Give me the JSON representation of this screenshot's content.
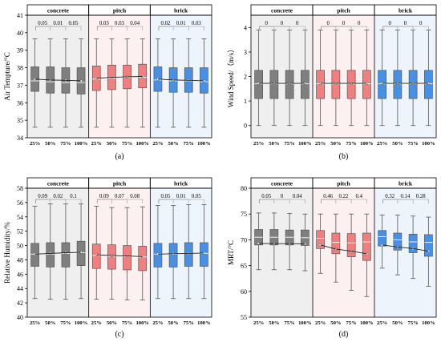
{
  "chart_data": [
    {
      "type": "box",
      "panel_label": "(a)",
      "ylabel": "Air Tempture/°C",
      "ylim": [
        34,
        41
      ],
      "yticks": [
        34,
        35,
        36,
        37,
        38,
        39,
        40,
        41
      ],
      "tick_labels": [
        "25%",
        "50%",
        "75%",
        "100%"
      ],
      "groups": [
        {
          "name": "concrete",
          "color": "#7f7f7f",
          "bg": "#efefef",
          "p_values": [
            "0.05",
            "0.01",
            "0.05"
          ],
          "boxes": [
            {
              "whisker_low": 34.6,
              "q1": 36.65,
              "median": 37.25,
              "mean": 37.35,
              "q3": 38.05,
              "whisker_high": 39.65
            },
            {
              "whisker_low": 34.6,
              "q1": 36.55,
              "median": 37.2,
              "mean": 37.3,
              "q3": 38.05,
              "whisker_high": 39.65
            },
            {
              "whisker_low": 34.6,
              "q1": 36.55,
              "median": 37.15,
              "mean": 37.28,
              "q3": 38.0,
              "whisker_high": 39.65
            },
            {
              "whisker_low": 34.6,
              "q1": 36.5,
              "median": 37.15,
              "mean": 37.25,
              "q3": 38.0,
              "whisker_high": 39.65
            }
          ]
        },
        {
          "name": "pitch",
          "color": "#f08080",
          "bg": "#fdf0f0",
          "p_values": [
            "0.03",
            "0.03",
            "0.04"
          ],
          "boxes": [
            {
              "whisker_low": 34.6,
              "q1": 36.7,
              "median": 37.35,
              "mean": 37.4,
              "q3": 38.1,
              "whisker_high": 39.65
            },
            {
              "whisker_low": 34.6,
              "q1": 36.75,
              "median": 37.4,
              "mean": 37.45,
              "q3": 38.15,
              "whisker_high": 39.65
            },
            {
              "whisker_low": 34.6,
              "q1": 36.8,
              "median": 37.45,
              "mean": 37.48,
              "q3": 38.15,
              "whisker_high": 39.65
            },
            {
              "whisker_low": 34.6,
              "q1": 36.85,
              "median": 37.45,
              "mean": 37.5,
              "q3": 38.2,
              "whisker_high": 39.65
            }
          ]
        },
        {
          "name": "brick",
          "color": "#4a90e2",
          "bg": "#eef4fb",
          "p_values": [
            "0.02",
            "0.01",
            "0.03"
          ],
          "boxes": [
            {
              "whisker_low": 34.6,
              "q1": 36.65,
              "median": 37.3,
              "mean": 37.35,
              "q3": 38.05,
              "whisker_high": 39.65
            },
            {
              "whisker_low": 34.6,
              "q1": 36.6,
              "median": 37.25,
              "mean": 37.3,
              "q3": 38.0,
              "whisker_high": 39.65
            },
            {
              "whisker_low": 34.6,
              "q1": 36.6,
              "median": 37.25,
              "mean": 37.28,
              "q3": 38.0,
              "whisker_high": 39.65
            },
            {
              "whisker_low": 34.6,
              "q1": 36.55,
              "median": 37.2,
              "mean": 37.25,
              "q3": 38.0,
              "whisker_high": 39.65
            }
          ]
        }
      ]
    },
    {
      "type": "box",
      "panel_label": "(b)",
      "ylabel": "Wind Speed/（m/s）",
      "ylim": [
        -0.5,
        4.5
      ],
      "yticks": [
        0,
        1,
        2,
        3,
        4
      ],
      "tick_labels": [
        "25%",
        "50%",
        "75%",
        "100%"
      ],
      "groups": [
        {
          "name": "concrete",
          "color": "#7f7f7f",
          "bg": "#efefef",
          "p_values": [
            "0",
            "0",
            "0"
          ],
          "boxes": [
            {
              "whisker_low": 0.0,
              "q1": 1.1,
              "median": 1.7,
              "mean": 1.72,
              "q3": 2.25,
              "whisker_high": 3.9
            },
            {
              "whisker_low": 0.0,
              "q1": 1.1,
              "median": 1.7,
              "mean": 1.72,
              "q3": 2.25,
              "whisker_high": 3.9
            },
            {
              "whisker_low": 0.0,
              "q1": 1.1,
              "median": 1.7,
              "mean": 1.72,
              "q3": 2.25,
              "whisker_high": 3.9
            },
            {
              "whisker_low": 0.0,
              "q1": 1.1,
              "median": 1.7,
              "mean": 1.72,
              "q3": 2.25,
              "whisker_high": 3.9
            }
          ]
        },
        {
          "name": "pitch",
          "color": "#f08080",
          "bg": "#fdf0f0",
          "p_values": [
            "0",
            "0",
            "0"
          ],
          "boxes": [
            {
              "whisker_low": 0.0,
              "q1": 1.1,
              "median": 1.7,
              "mean": 1.72,
              "q3": 2.25,
              "whisker_high": 3.9
            },
            {
              "whisker_low": 0.0,
              "q1": 1.1,
              "median": 1.7,
              "mean": 1.72,
              "q3": 2.25,
              "whisker_high": 3.9
            },
            {
              "whisker_low": 0.0,
              "q1": 1.1,
              "median": 1.7,
              "mean": 1.72,
              "q3": 2.25,
              "whisker_high": 3.9
            },
            {
              "whisker_low": 0.0,
              "q1": 1.1,
              "median": 1.7,
              "mean": 1.72,
              "q3": 2.25,
              "whisker_high": 3.9
            }
          ]
        },
        {
          "name": "brick",
          "color": "#4a90e2",
          "bg": "#eef4fb",
          "p_values": [
            "0",
            "0",
            "0"
          ],
          "boxes": [
            {
              "whisker_low": 0.0,
              "q1": 1.1,
              "median": 1.7,
              "mean": 1.72,
              "q3": 2.25,
              "whisker_high": 3.9
            },
            {
              "whisker_low": 0.0,
              "q1": 1.1,
              "median": 1.7,
              "mean": 1.72,
              "q3": 2.25,
              "whisker_high": 3.9
            },
            {
              "whisker_low": 0.0,
              "q1": 1.1,
              "median": 1.7,
              "mean": 1.72,
              "q3": 2.25,
              "whisker_high": 3.9
            },
            {
              "whisker_low": 0.0,
              "q1": 1.1,
              "median": 1.7,
              "mean": 1.72,
              "q3": 2.25,
              "whisker_high": 3.9
            }
          ]
        }
      ]
    },
    {
      "type": "box",
      "panel_label": "(c)",
      "ylabel": "Relative Humidity/%",
      "ylim": [
        40,
        58
      ],
      "yticks": [
        40,
        42,
        44,
        46,
        48,
        50,
        52,
        54,
        56,
        58
      ],
      "tick_labels": [
        "25%",
        "50%",
        "75%",
        "100%"
      ],
      "groups": [
        {
          "name": "concrete",
          "color": "#7f7f7f",
          "bg": "#efefef",
          "p_values": [
            "0.09",
            "0.02",
            "0.1"
          ],
          "boxes": [
            {
              "whisker_low": 42.6,
              "q1": 47.1,
              "median": 48.8,
              "mean": 48.8,
              "q3": 50.3,
              "whisker_high": 55.5
            },
            {
              "whisker_low": 42.5,
              "q1": 47.0,
              "median": 48.8,
              "mean": 48.9,
              "q3": 50.4,
              "whisker_high": 55.8
            },
            {
              "whisker_low": 42.5,
              "q1": 47.0,
              "median": 48.9,
              "mean": 49.0,
              "q3": 50.4,
              "whisker_high": 55.8
            },
            {
              "whisker_low": 42.6,
              "q1": 47.2,
              "median": 49.0,
              "mean": 49.05,
              "q3": 50.6,
              "whisker_high": 55.8
            }
          ]
        },
        {
          "name": "pitch",
          "color": "#f08080",
          "bg": "#fdf0f0",
          "p_values": [
            "0.09",
            "0.07",
            "0.08"
          ],
          "boxes": [
            {
              "whisker_low": 42.5,
              "q1": 46.8,
              "median": 48.6,
              "mean": 48.7,
              "q3": 50.2,
              "whisker_high": 55.5
            },
            {
              "whisker_low": 42.5,
              "q1": 46.7,
              "median": 48.5,
              "mean": 48.6,
              "q3": 50.1,
              "whisker_high": 55.3
            },
            {
              "whisker_low": 42.4,
              "q1": 46.6,
              "median": 48.5,
              "mean": 48.55,
              "q3": 50.0,
              "whisker_high": 55.3
            },
            {
              "whisker_low": 42.4,
              "q1": 46.5,
              "median": 48.4,
              "mean": 48.45,
              "q3": 49.9,
              "whisker_high": 55.4
            }
          ]
        },
        {
          "name": "brick",
          "color": "#4a90e2",
          "bg": "#eef4fb",
          "p_values": [
            "0.05",
            "0.01",
            "0.05"
          ],
          "boxes": [
            {
              "whisker_low": 42.6,
              "q1": 47.0,
              "median": 48.8,
              "mean": 48.8,
              "q3": 50.3,
              "whisker_high": 55.6
            },
            {
              "whisker_low": 42.6,
              "q1": 47.0,
              "median": 48.8,
              "mean": 48.85,
              "q3": 50.3,
              "whisker_high": 55.6
            },
            {
              "whisker_low": 42.6,
              "q1": 47.1,
              "median": 48.9,
              "mean": 48.9,
              "q3": 50.4,
              "whisker_high": 55.7
            },
            {
              "whisker_low": 42.6,
              "q1": 47.1,
              "median": 48.9,
              "mean": 48.95,
              "q3": 50.4,
              "whisker_high": 55.7
            }
          ]
        }
      ]
    },
    {
      "type": "box",
      "panel_label": "(d)",
      "ylabel": "MRT/°C",
      "ylim": [
        55,
        80
      ],
      "yticks": [
        55,
        60,
        65,
        70,
        75,
        80
      ],
      "tick_labels": [
        "25%",
        "50%",
        "75%",
        "100%"
      ],
      "groups": [
        {
          "name": "concrete",
          "color": "#7f7f7f",
          "bg": "#efefef",
          "p_values": [
            "0.05",
            "0",
            "0.04"
          ],
          "boxes": [
            {
              "whisker_low": 64.2,
              "q1": 69.0,
              "median": 70.5,
              "mean": 69.3,
              "q3": 72.0,
              "whisker_high": 75.2
            },
            {
              "whisker_low": 64.2,
              "q1": 69.0,
              "median": 70.5,
              "mean": 69.25,
              "q3": 72.0,
              "whisker_high": 75.2
            },
            {
              "whisker_low": 64.2,
              "q1": 69.0,
              "median": 70.5,
              "mean": 69.25,
              "q3": 71.9,
              "whisker_high": 75.1
            },
            {
              "whisker_low": 64.0,
              "q1": 68.9,
              "median": 70.4,
              "mean": 69.2,
              "q3": 71.9,
              "whisker_high": 75.0
            }
          ]
        },
        {
          "name": "pitch",
          "color": "#f08080",
          "bg": "#fdf0f0",
          "p_values": [
            "0.46",
            "0.22",
            "0.4"
          ],
          "boxes": [
            {
              "whisker_low": 63.5,
              "q1": 68.3,
              "median": 70.3,
              "mean": 69.0,
              "q3": 71.8,
              "whisker_high": 75.0
            },
            {
              "whisker_low": 61.8,
              "q1": 67.3,
              "median": 69.5,
              "mean": 68.2,
              "q3": 71.3,
              "whisker_high": 75.0
            },
            {
              "whisker_low": 60.2,
              "q1": 66.7,
              "median": 69.4,
              "mean": 67.8,
              "q3": 71.2,
              "whisker_high": 75.0
            },
            {
              "whisker_low": 59.0,
              "q1": 66.0,
              "median": 69.6,
              "mean": 67.3,
              "q3": 71.3,
              "whisker_high": 75.0
            }
          ]
        },
        {
          "name": "brick",
          "color": "#4a90e2",
          "bg": "#eef4fb",
          "p_values": [
            "0.32",
            "0.14",
            "0.28"
          ],
          "boxes": [
            {
              "whisker_low": 64.5,
              "q1": 68.8,
              "median": 70.6,
              "mean": 69.0,
              "q3": 71.8,
              "whisker_high": 74.8
            },
            {
              "whisker_low": 63.2,
              "q1": 68.0,
              "median": 70.0,
              "mean": 68.6,
              "q3": 71.3,
              "whisker_high": 74.8
            },
            {
              "whisker_low": 62.5,
              "q1": 67.5,
              "median": 69.6,
              "mean": 68.3,
              "q3": 71.1,
              "whisker_high": 74.6
            },
            {
              "whisker_low": 61.0,
              "q1": 66.8,
              "median": 69.5,
              "mean": 67.8,
              "q3": 71.0,
              "whisker_high": 74.4
            }
          ]
        }
      ]
    }
  ]
}
